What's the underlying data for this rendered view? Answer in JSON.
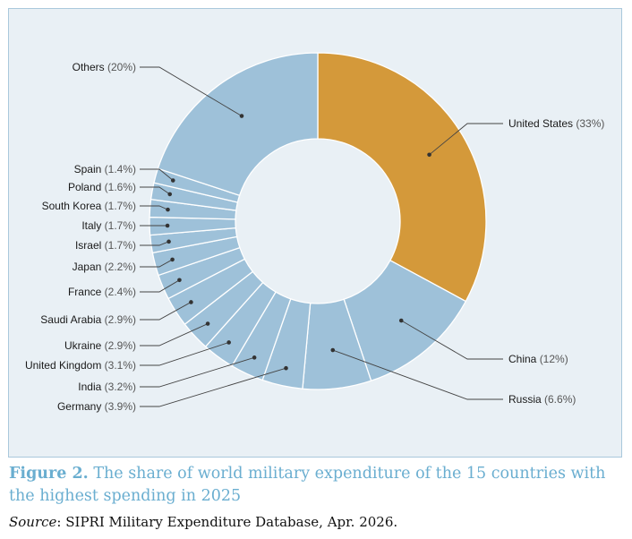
{
  "chart_data": {
    "type": "pie",
    "variant": "donut",
    "unit": "%",
    "slices": [
      {
        "label": "United States",
        "value": 33,
        "value_text": "33%",
        "color": "#d4993a"
      },
      {
        "label": "China",
        "value": 12,
        "value_text": "12%",
        "color": "#9ec1d9"
      },
      {
        "label": "Russia",
        "value": 6.6,
        "value_text": "6.6%",
        "color": "#9ec1d9"
      },
      {
        "label": "Germany",
        "value": 3.9,
        "value_text": "3.9%",
        "color": "#9ec1d9"
      },
      {
        "label": "India",
        "value": 3.2,
        "value_text": "3.2%",
        "color": "#9ec1d9"
      },
      {
        "label": "United Kingdom",
        "value": 3.1,
        "value_text": "3.1%",
        "color": "#9ec1d9"
      },
      {
        "label": "Ukraine",
        "value": 2.9,
        "value_text": "2.9%",
        "color": "#9ec1d9"
      },
      {
        "label": "Saudi Arabia",
        "value": 2.9,
        "value_text": "2.9%",
        "color": "#9ec1d9"
      },
      {
        "label": "France",
        "value": 2.4,
        "value_text": "2.4%",
        "color": "#9ec1d9"
      },
      {
        "label": "Japan",
        "value": 2.2,
        "value_text": "2.2%",
        "color": "#9ec1d9"
      },
      {
        "label": "Israel",
        "value": 1.7,
        "value_text": "1.7%",
        "color": "#9ec1d9"
      },
      {
        "label": "Italy",
        "value": 1.7,
        "value_text": "1.7%",
        "color": "#9ec1d9"
      },
      {
        "label": "South Korea",
        "value": 1.7,
        "value_text": "1.7%",
        "color": "#9ec1d9"
      },
      {
        "label": "Poland",
        "value": 1.6,
        "value_text": "1.6%",
        "color": "#9ec1d9"
      },
      {
        "label": "Spain",
        "value": 1.4,
        "value_text": "1.4%",
        "color": "#9ec1d9"
      },
      {
        "label": "Others",
        "value": 20,
        "value_text": "20%",
        "color": "#9ec1d9"
      }
    ]
  },
  "caption": {
    "figure_label": "Figure 2.",
    "text": "The share of world military expenditure of the 15 countries with the highest spending in 2025"
  },
  "source": {
    "label": "Source",
    "text": ": SIPRI Military Expenditure Database, Apr. 2026."
  },
  "colors": {
    "panel_bg": "#e9f0f5",
    "panel_border": "#a9c8dc",
    "highlight": "#d4993a",
    "slice": "#9ec1d9",
    "caption": "#6aaed0"
  }
}
